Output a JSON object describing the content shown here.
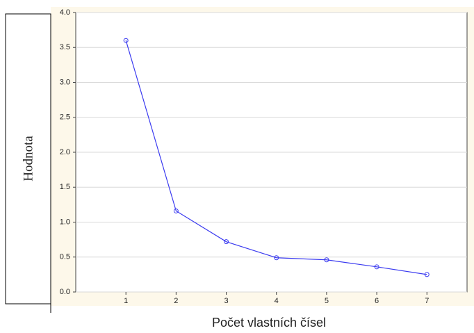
{
  "chart_data": {
    "type": "line",
    "x_label": "Počet vlastních čísel",
    "y_label": "Hodnota",
    "x": [
      1,
      2,
      3,
      4,
      5,
      6,
      7
    ],
    "series": [
      {
        "color": "#3b3bf0",
        "values": [
          3.6,
          1.16,
          0.72,
          0.49,
          0.46,
          0.36,
          0.25
        ]
      }
    ],
    "xlim": [
      0,
      7.8
    ],
    "xticks": [
      1,
      2,
      3,
      4,
      5,
      6,
      7
    ],
    "ylim": [
      0,
      4
    ],
    "yticks": [
      {
        "value": 0,
        "label": "0.0"
      },
      {
        "value": 0.5,
        "label": "0.5"
      },
      {
        "value": 1,
        "label": "1.0"
      },
      {
        "value": 1.5,
        "label": "1.5"
      },
      {
        "value": 2,
        "label": "2.0"
      },
      {
        "value": 2.5,
        "label": "2.5"
      },
      {
        "value": 3,
        "label": "3.0"
      },
      {
        "value": 3.5,
        "label": "3.5"
      },
      {
        "value": 4,
        "label": "4.0"
      }
    ],
    "grid": true
  }
}
